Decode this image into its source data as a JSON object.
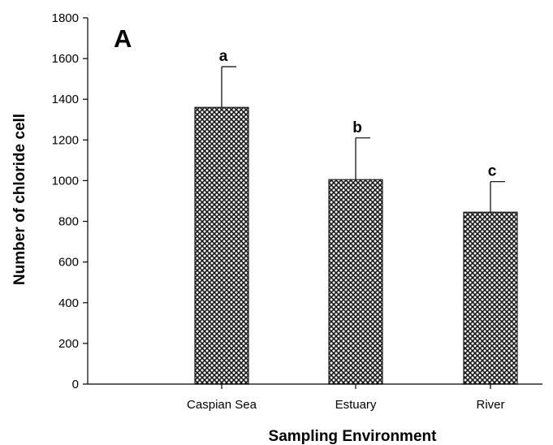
{
  "chart_data": {
    "type": "bar",
    "panel_label": "A",
    "categories": [
      "Caspian Sea",
      "Estuary",
      "River"
    ],
    "values": [
      1360,
      1005,
      845
    ],
    "errors": [
      200,
      205,
      150
    ],
    "significance_labels": [
      "a",
      "b",
      "c"
    ],
    "xlabel": "Sampling Environment",
    "ylabel": "Number of chloride cell",
    "ylim": [
      0,
      1800
    ],
    "yticks": [
      0,
      200,
      400,
      600,
      800,
      1000,
      1200,
      1400,
      1600,
      1800
    ],
    "bar_pattern": "crosshatch",
    "bar_color": "#1a1a1a",
    "grid": false,
    "legend": "none"
  }
}
